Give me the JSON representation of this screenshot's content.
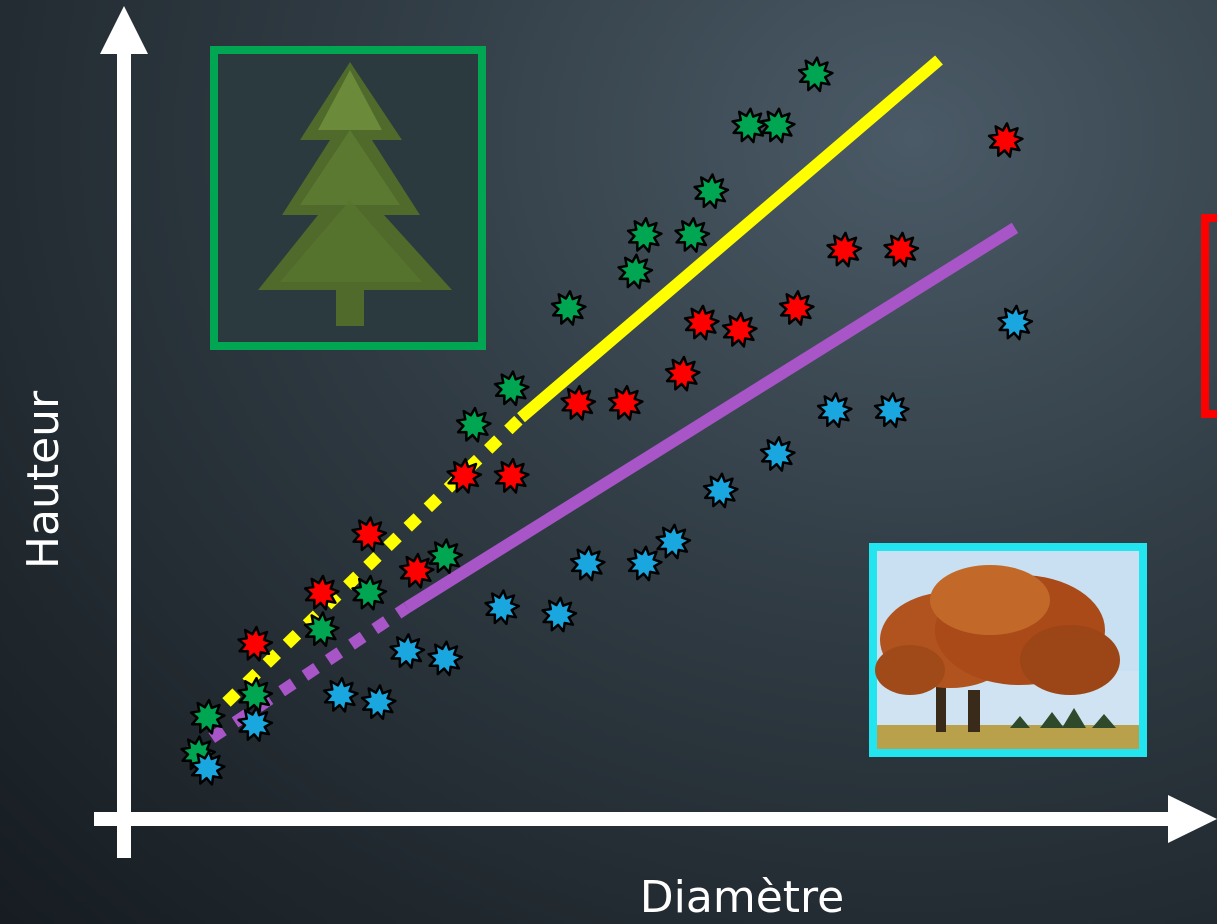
{
  "chart_data": {
    "type": "scatter",
    "title": "",
    "xlabel": "Diamètre",
    "ylabel": "Hauteur",
    "xlim": [
      0,
      100
    ],
    "ylim": [
      0,
      100
    ],
    "grid": false,
    "series": [
      {
        "color": "#00a651",
        "points": [
          [
            4,
            5
          ],
          [
            5,
            10
          ],
          [
            10,
            13
          ],
          [
            17,
            22
          ],
          [
            22,
            27
          ],
          [
            30,
            32
          ],
          [
            33,
            50
          ],
          [
            37,
            55
          ],
          [
            43,
            66
          ],
          [
            50,
            71
          ],
          [
            51,
            76
          ],
          [
            56,
            76
          ],
          [
            58,
            82
          ],
          [
            62,
            91
          ],
          [
            65,
            91
          ],
          [
            69,
            98
          ]
        ]
      },
      {
        "color": "#ff0000",
        "points": [
          [
            10,
            20
          ],
          [
            17,
            27
          ],
          [
            22,
            35
          ],
          [
            27,
            30
          ],
          [
            32,
            43
          ],
          [
            37,
            43
          ],
          [
            44,
            53
          ],
          [
            49,
            53
          ],
          [
            55,
            57
          ],
          [
            57,
            64
          ],
          [
            61,
            63
          ],
          [
            67,
            66
          ],
          [
            72,
            74
          ],
          [
            78,
            74
          ],
          [
            89,
            89
          ]
        ]
      },
      {
        "color": "#1aa7e0",
        "points": [
          [
            5,
            3
          ],
          [
            10,
            9
          ],
          [
            19,
            13
          ],
          [
            23,
            12
          ],
          [
            26,
            19
          ],
          [
            30,
            18
          ],
          [
            36,
            25
          ],
          [
            42,
            24
          ],
          [
            45,
            31
          ],
          [
            51,
            31
          ],
          [
            54,
            34
          ],
          [
            59,
            41
          ],
          [
            65,
            46
          ],
          [
            71,
            52
          ],
          [
            77,
            52
          ],
          [
            90,
            64
          ]
        ]
      }
    ],
    "trend_lines": [
      {
        "color": "#ffff00",
        "style": "dashed",
        "from": [
          7,
          12
        ],
        "to": [
          38,
          51
        ]
      },
      {
        "color": "#ffff00",
        "style": "solid",
        "from": [
          38,
          51
        ],
        "to": [
          82,
          100
        ]
      },
      {
        "color": "#a855c8",
        "style": "dashed",
        "from": [
          3,
          5
        ],
        "to": [
          26,
          25
        ]
      },
      {
        "color": "#a855c8",
        "style": "solid",
        "from": [
          26,
          25
        ],
        "to": [
          90,
          77
        ]
      }
    ],
    "insets": [
      {
        "name": "conifer-image",
        "frame_color": "#00a651"
      },
      {
        "name": "deciduous-image",
        "frame_color": "#22e5f0"
      },
      {
        "name": "partial-frame",
        "frame_color": "#ff0000"
      }
    ]
  }
}
